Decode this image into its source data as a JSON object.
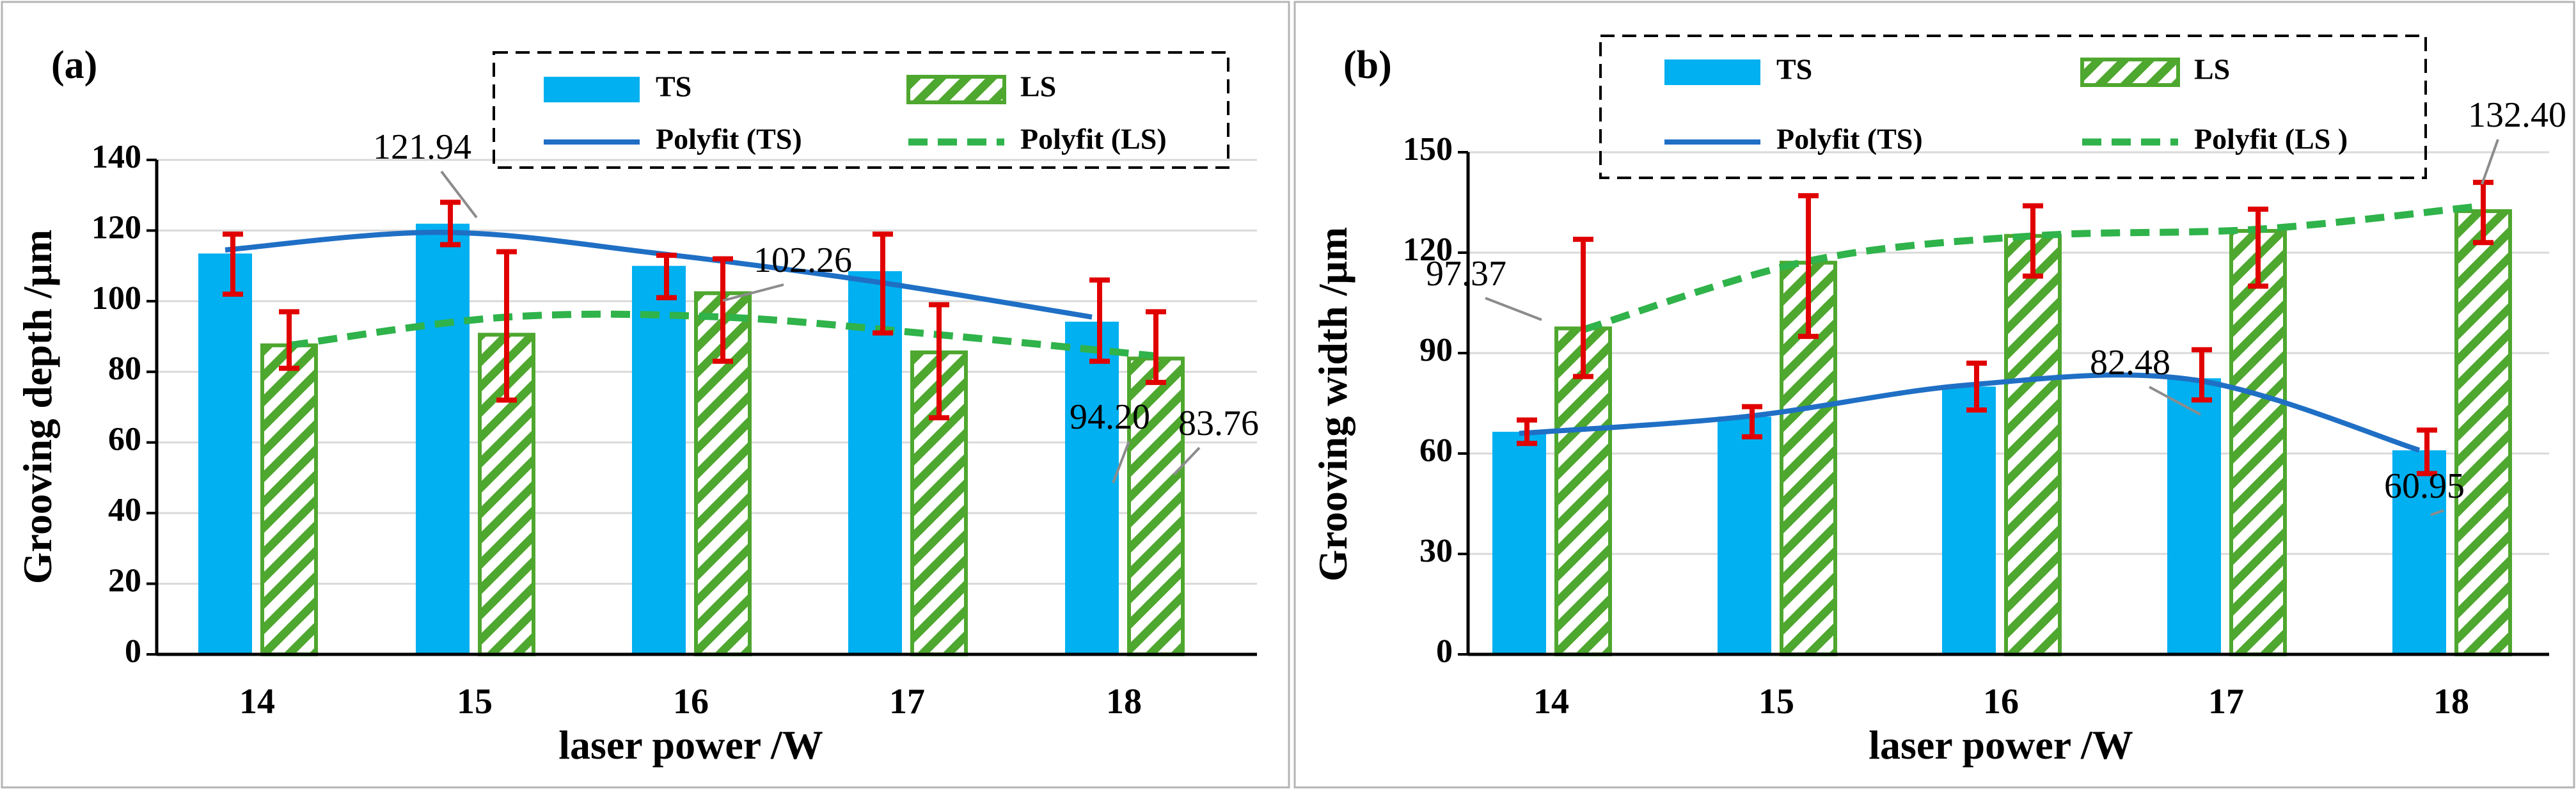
{
  "chart_data": [
    {
      "type": "bar",
      "panel_label": "(a)",
      "xlabel": "laser power /W",
      "ylabel": "Grooving depth /μm",
      "categories": [
        "14",
        "15",
        "16",
        "17",
        "18"
      ],
      "ylim": [
        0,
        140
      ],
      "yticks": [
        0,
        20,
        40,
        60,
        80,
        100,
        120,
        140
      ],
      "ytick_labels": [
        "0",
        "20",
        "40",
        "60",
        "80",
        "100",
        "120",
        "140"
      ],
      "grid": true,
      "legend_position": "top",
      "legend": [
        {
          "key": "ts_bar",
          "label": "TS"
        },
        {
          "key": "ls_bar",
          "label": "LS"
        },
        {
          "key": "ts_fit",
          "label": "Polyfit (TS)"
        },
        {
          "key": "ls_fit",
          "label": "Polyfit (LS)"
        }
      ],
      "series": [
        {
          "name": "TS",
          "values": [
            113.5,
            121.94,
            110.0,
            108.5,
            94.2
          ],
          "err_low": [
            102,
            116,
            101,
            91,
            83
          ],
          "err_high": [
            119,
            128,
            113,
            119,
            106
          ]
        },
        {
          "name": "LS",
          "values": [
            87.5,
            90.5,
            102.26,
            85.5,
            83.76
          ],
          "err_low": [
            81,
            72,
            83,
            67,
            77
          ],
          "err_high": [
            97,
            114,
            112,
            99,
            97
          ]
        }
      ],
      "fits": [
        {
          "name": "Polyfit (TS)",
          "values": [
            114.5,
            119.5,
            113.5,
            105.5,
            95.5
          ]
        },
        {
          "name": "Polyfit (LS)",
          "values": [
            87.5,
            95.5,
            95.5,
            90.5,
            84.5
          ]
        }
      ],
      "annotations": [
        {
          "series": 0,
          "index": 1,
          "text": "121.94"
        },
        {
          "series": 1,
          "index": 2,
          "text": "102.26"
        },
        {
          "series": 0,
          "index": 4,
          "text": "94.20"
        },
        {
          "series": 1,
          "index": 4,
          "text": "83.76"
        }
      ]
    },
    {
      "type": "bar",
      "panel_label": "(b)",
      "xlabel": "laser power /W",
      "ylabel": "Grooving width /μm",
      "categories": [
        "14",
        "15",
        "16",
        "17",
        "18"
      ],
      "ylim": [
        0,
        150
      ],
      "yticks": [
        0,
        30,
        60,
        90,
        120,
        150
      ],
      "ytick_labels": [
        "0",
        "30",
        "60",
        "90",
        "120",
        "150"
      ],
      "grid": true,
      "legend_position": "top",
      "legend": [
        {
          "key": "ts_bar",
          "label": "TS"
        },
        {
          "key": "ls_bar",
          "label": "LS"
        },
        {
          "key": "ts_fit",
          "label": "Polyfit (TS)"
        },
        {
          "key": "ls_fit",
          "label": "Polyfit (LS )"
        }
      ],
      "series": [
        {
          "name": "TS",
          "values": [
            66.5,
            71.0,
            80.0,
            82.48,
            60.95
          ],
          "err_low": [
            63,
            65,
            73,
            76,
            54
          ],
          "err_high": [
            70,
            74,
            87,
            91,
            67
          ]
        },
        {
          "name": "LS",
          "values": [
            97.37,
            117.0,
            125.0,
            126.5,
            132.4
          ],
          "err_low": [
            83,
            95,
            113,
            110,
            123
          ],
          "err_high": [
            124,
            137,
            134,
            133,
            141
          ]
        }
      ],
      "fits": [
        {
          "name": "Polyfit (TS)",
          "values": [
            66.0,
            71.0,
            80.5,
            82.0,
            61.0
          ]
        },
        {
          "name": "Polyfit (LS )",
          "values": [
            97.0,
            117.5,
            125.0,
            127.0,
            134.0
          ]
        }
      ],
      "annotations": [
        {
          "series": 0,
          "index": 3,
          "text": "82.48"
        },
        {
          "series": 0,
          "index": 4,
          "text": "60.95"
        },
        {
          "series": 1,
          "index": 0,
          "text": "97.37"
        },
        {
          "series": 1,
          "index": 4,
          "text": "132.40"
        }
      ]
    }
  ]
}
